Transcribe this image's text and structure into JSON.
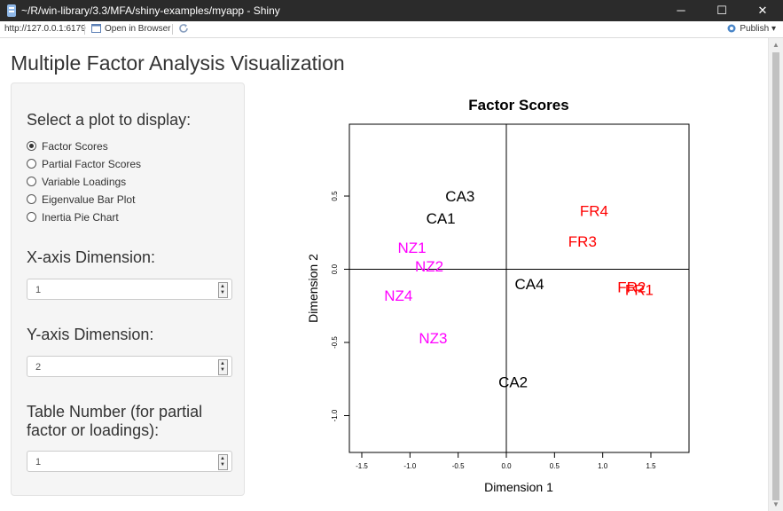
{
  "window": {
    "title": "~/R/win-library/3.3/MFA/shiny-examples/myapp - Shiny",
    "minimize": "─",
    "maximize": "☐",
    "close": "✕"
  },
  "toolbar": {
    "url": "http://127.0.0.1:6179",
    "open_in_browser": "Open in Browser",
    "publish": "Publish"
  },
  "page": {
    "title": "Multiple Factor Analysis Visualization"
  },
  "sidebar": {
    "plot_select_label": "Select a plot to display:",
    "plot_options": [
      "Factor Scores",
      "Partial Factor Scores",
      "Variable Loadings",
      "Eigenvalue Bar Plot",
      "Inertia Pie Chart"
    ],
    "selected_index": 0,
    "x_label": "X-axis Dimension:",
    "x_value": "1",
    "y_label": "Y-axis Dimension:",
    "y_value": "2",
    "table_label_line1": "Table Number (for partial",
    "table_label_line2": "factor or loadings):",
    "table_value": "1"
  },
  "chart_data": {
    "type": "scatter",
    "title": "Factor Scores",
    "xlabel": "Dimension 1",
    "ylabel": "Dimension 2",
    "xlim": [
      -1.5,
      1.5
    ],
    "ylim": [
      -1.0,
      0.5
    ],
    "x_ticks": [
      -1.5,
      -1.0,
      -0.5,
      0.0,
      0.5,
      1.0,
      1.5
    ],
    "y_ticks": [
      -1.0,
      -0.5,
      0.0,
      0.5
    ],
    "x_tick_labels": [
      "-1.5",
      "-1.0",
      "-0.5",
      "0.0",
      "0.5",
      "1.0",
      "1.5"
    ],
    "y_tick_labels": [
      "-1.0",
      "-0.5",
      "0.0",
      "0.5"
    ],
    "colors": {
      "CA": "#000000",
      "FR": "#ff0000",
      "NZ": "#ff00ff"
    },
    "points": [
      {
        "label": "CA3",
        "x": -0.48,
        "y": 0.5,
        "group": "CA"
      },
      {
        "label": "CA1",
        "x": -0.68,
        "y": 0.35,
        "group": "CA"
      },
      {
        "label": "CA4",
        "x": 0.24,
        "y": -0.1,
        "group": "CA"
      },
      {
        "label": "CA2",
        "x": 0.07,
        "y": -0.77,
        "group": "CA"
      },
      {
        "label": "FR4",
        "x": 0.91,
        "y": 0.4,
        "group": "FR"
      },
      {
        "label": "FR3",
        "x": 0.79,
        "y": 0.19,
        "group": "FR"
      },
      {
        "label": "FR2",
        "x": 1.3,
        "y": -0.12,
        "group": "FR"
      },
      {
        "label": "FR1",
        "x": 1.38,
        "y": -0.14,
        "group": "FR"
      },
      {
        "label": "NZ1",
        "x": -0.98,
        "y": 0.15,
        "group": "NZ"
      },
      {
        "label": "NZ2",
        "x": -0.8,
        "y": 0.02,
        "group": "NZ"
      },
      {
        "label": "NZ4",
        "x": -1.12,
        "y": -0.18,
        "group": "NZ"
      },
      {
        "label": "NZ3",
        "x": -0.76,
        "y": -0.47,
        "group": "NZ"
      }
    ]
  }
}
